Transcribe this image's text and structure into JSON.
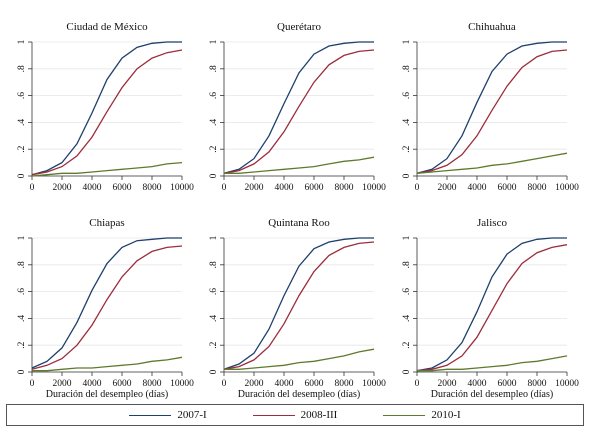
{
  "chart_data": {
    "type": "line",
    "x_ticks": [
      0,
      2000,
      4000,
      6000,
      8000,
      10000
    ],
    "y_ticks": [
      0,
      0.2,
      0.4,
      0.6,
      0.8,
      1
    ],
    "y_tick_labels": [
      "0",
      ".2",
      ".4",
      ".6",
      ".8",
      "1"
    ],
    "xlim": [
      0,
      10000
    ],
    "ylim": [
      0,
      1
    ],
    "xlabel": "Duración del desempleo (días)",
    "grid": true,
    "legend_position": "bottom",
    "legend": [
      {
        "name": "2007-I",
        "color": "#1f3f6e"
      },
      {
        "name": "2008-III",
        "color": "#9b2d3d"
      },
      {
        "name": "2010-I",
        "color": "#5e7a2c"
      }
    ],
    "panels": [
      {
        "title": "Ciudad de México",
        "x": [
          0,
          1000,
          2000,
          3000,
          4000,
          5000,
          6000,
          7000,
          8000,
          9000,
          10000
        ],
        "series": [
          {
            "name": "2007-I",
            "values": [
              0.01,
              0.04,
              0.1,
              0.24,
              0.47,
              0.72,
              0.88,
              0.96,
              0.99,
              1.0,
              1.0
            ]
          },
          {
            "name": "2008-III",
            "values": [
              0.01,
              0.03,
              0.07,
              0.15,
              0.29,
              0.48,
              0.66,
              0.8,
              0.88,
              0.92,
              0.94
            ]
          },
          {
            "name": "2010-I",
            "values": [
              0.0,
              0.01,
              0.02,
              0.02,
              0.03,
              0.04,
              0.05,
              0.06,
              0.07,
              0.09,
              0.1
            ]
          }
        ]
      },
      {
        "title": "Querétaro",
        "x": [
          0,
          1000,
          2000,
          3000,
          4000,
          5000,
          6000,
          7000,
          8000,
          9000,
          10000
        ],
        "series": [
          {
            "name": "2007-I",
            "values": [
              0.02,
              0.05,
              0.13,
              0.3,
              0.54,
              0.77,
              0.91,
              0.97,
              0.99,
              1.0,
              1.0
            ]
          },
          {
            "name": "2008-III",
            "values": [
              0.02,
              0.04,
              0.09,
              0.18,
              0.33,
              0.52,
              0.7,
              0.83,
              0.9,
              0.93,
              0.94
            ]
          },
          {
            "name": "2010-I",
            "values": [
              0.02,
              0.02,
              0.03,
              0.04,
              0.05,
              0.06,
              0.07,
              0.09,
              0.11,
              0.12,
              0.14
            ]
          }
        ]
      },
      {
        "title": "Chihuahua",
        "x": [
          0,
          1000,
          2000,
          3000,
          4000,
          5000,
          6000,
          7000,
          8000,
          9000,
          10000
        ],
        "series": [
          {
            "name": "2007-I",
            "values": [
              0.02,
              0.05,
              0.13,
              0.3,
              0.55,
              0.78,
              0.91,
              0.97,
              0.99,
              1.0,
              1.0
            ]
          },
          {
            "name": "2008-III",
            "values": [
              0.02,
              0.04,
              0.08,
              0.16,
              0.3,
              0.49,
              0.67,
              0.81,
              0.89,
              0.93,
              0.94
            ]
          },
          {
            "name": "2010-I",
            "values": [
              0.02,
              0.03,
              0.04,
              0.05,
              0.06,
              0.08,
              0.09,
              0.11,
              0.13,
              0.15,
              0.17
            ]
          }
        ]
      },
      {
        "title": "Chiapas",
        "x": [
          0,
          1000,
          2000,
          3000,
          4000,
          5000,
          6000,
          7000,
          8000,
          9000,
          10000
        ],
        "series": [
          {
            "name": "2007-I",
            "values": [
              0.03,
              0.08,
              0.18,
              0.37,
              0.61,
              0.81,
              0.93,
              0.98,
              0.99,
              1.0,
              1.0
            ]
          },
          {
            "name": "2008-III",
            "values": [
              0.02,
              0.05,
              0.1,
              0.2,
              0.35,
              0.54,
              0.71,
              0.83,
              0.9,
              0.93,
              0.94
            ]
          },
          {
            "name": "2010-I",
            "values": [
              0.01,
              0.01,
              0.02,
              0.03,
              0.03,
              0.04,
              0.05,
              0.06,
              0.08,
              0.09,
              0.11
            ]
          }
        ]
      },
      {
        "title": "Quintana Roo",
        "x": [
          0,
          1000,
          2000,
          3000,
          4000,
          5000,
          6000,
          7000,
          8000,
          9000,
          10000
        ],
        "series": [
          {
            "name": "2007-I",
            "values": [
              0.02,
              0.06,
              0.14,
              0.32,
              0.57,
              0.79,
              0.92,
              0.97,
              0.99,
              1.0,
              1.0
            ]
          },
          {
            "name": "2008-III",
            "values": [
              0.02,
              0.04,
              0.09,
              0.19,
              0.36,
              0.57,
              0.75,
              0.87,
              0.93,
              0.96,
              0.97
            ]
          },
          {
            "name": "2010-I",
            "values": [
              0.02,
              0.02,
              0.03,
              0.04,
              0.05,
              0.07,
              0.08,
              0.1,
              0.12,
              0.15,
              0.17
            ]
          }
        ]
      },
      {
        "title": "Jalisco",
        "x": [
          0,
          1000,
          2000,
          3000,
          4000,
          5000,
          6000,
          7000,
          8000,
          9000,
          10000
        ],
        "series": [
          {
            "name": "2007-I",
            "values": [
              0.01,
              0.03,
              0.09,
              0.22,
              0.45,
              0.71,
              0.88,
              0.96,
              0.99,
              1.0,
              1.0
            ]
          },
          {
            "name": "2008-III",
            "values": [
              0.01,
              0.02,
              0.05,
              0.12,
              0.26,
              0.46,
              0.66,
              0.81,
              0.89,
              0.93,
              0.95
            ]
          },
          {
            "name": "2010-I",
            "values": [
              0.01,
              0.01,
              0.02,
              0.02,
              0.03,
              0.04,
              0.05,
              0.07,
              0.08,
              0.1,
              0.12
            ]
          }
        ]
      }
    ]
  }
}
